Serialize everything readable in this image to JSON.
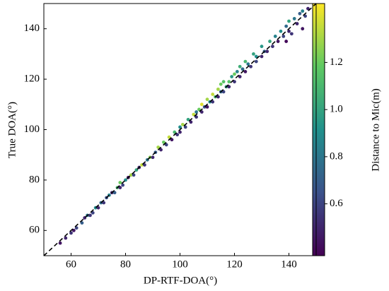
{
  "chart_data": {
    "type": "scatter",
    "xlabel": "DP-RTF-DOA(°)",
    "ylabel": "True DOA(°)",
    "colorbar_label": "Distance to Mic(m)",
    "xlim": [
      50,
      150
    ],
    "ylim": [
      50,
      150
    ],
    "xticks": [
      60,
      80,
      100,
      120,
      140
    ],
    "yticks": [
      60,
      80,
      100,
      120,
      140
    ],
    "clim": [
      0.38,
      1.45
    ],
    "cticks": [
      0.6,
      0.8,
      {
        "value": 1,
        "label": "1.0"
      },
      1.2
    ],
    "x": [
      56,
      58,
      60,
      62,
      61,
      64,
      65,
      66,
      67,
      68,
      69,
      70,
      71,
      72,
      73,
      74,
      75,
      76,
      77,
      78,
      78,
      79,
      80,
      81,
      82,
      83,
      84,
      85,
      86,
      87,
      88,
      89,
      90,
      91,
      92,
      93,
      94,
      95,
      96,
      97,
      98,
      99,
      100,
      100,
      101,
      102,
      103,
      104,
      105,
      106,
      106,
      107,
      108,
      108,
      109,
      110,
      110,
      111,
      112,
      112,
      113,
      114,
      114,
      115,
      115,
      116,
      117,
      118,
      118,
      119,
      120,
      120,
      121,
      122,
      122,
      123,
      124,
      124,
      125,
      126,
      127,
      128,
      128,
      130,
      130,
      131,
      132,
      133,
      134,
      135,
      136,
      137,
      138,
      139,
      140,
      140,
      141,
      142,
      143,
      144,
      145,
      146,
      147,
      139,
      145,
      116
    ],
    "y": [
      55,
      57,
      59,
      61,
      60,
      63,
      65,
      66,
      66,
      67,
      69,
      69,
      71,
      71,
      73,
      74,
      75,
      75,
      77,
      77,
      79,
      78,
      80,
      81,
      82,
      82,
      84,
      85,
      86,
      86,
      88,
      89,
      89,
      91,
      93,
      92,
      95,
      94,
      97,
      96,
      99,
      98,
      101,
      99,
      102,
      101,
      104,
      103,
      106,
      105,
      107,
      108,
      107,
      110,
      109,
      112,
      109,
      111,
      114,
      111,
      113,
      116,
      113,
      115,
      118,
      115,
      117,
      119,
      117,
      121,
      119,
      122,
      123,
      121,
      125,
      124,
      123,
      127,
      126,
      125,
      130,
      127,
      129,
      129,
      133,
      131,
      131,
      135,
      133,
      137,
      135,
      139,
      137,
      141,
      139,
      143,
      138,
      144,
      142,
      146,
      147,
      145,
      148,
      135,
      140,
      119
    ],
    "c": [
      0.45,
      0.5,
      0.55,
      0.6,
      0.45,
      0.7,
      0.5,
      0.8,
      0.55,
      0.6,
      0.9,
      0.5,
      0.75,
      0.55,
      0.65,
      0.85,
      0.5,
      0.7,
      1.1,
      0.5,
      1.2,
      0.6,
      0.9,
      0.45,
      1.3,
      0.6,
      1.0,
      0.5,
      1.35,
      0.55,
      0.8,
      1.25,
      0.5,
      0.7,
      1.3,
      0.5,
      1.2,
      0.6,
      1.35,
      0.45,
      1.1,
      0.55,
      0.9,
      0.5,
      1.3,
      0.6,
      1.0,
      0.5,
      1.35,
      0.55,
      0.8,
      1.2,
      0.5,
      1.4,
      0.65,
      1.3,
      0.45,
      0.9,
      1.35,
      0.55,
      1.1,
      1.3,
      0.5,
      0.75,
      1.2,
      0.6,
      1.0,
      1.15,
      0.5,
      0.95,
      0.55,
      1.2,
      0.85,
      0.5,
      1.05,
      0.75,
      0.45,
      1.1,
      0.8,
      0.55,
      1.0,
      0.6,
      0.9,
      0.5,
      0.95,
      0.7,
      0.5,
      1.0,
      0.55,
      0.85,
      0.45,
      0.9,
      0.6,
      0.75,
      0.5,
      1.0,
      0.55,
      0.8,
      0.5,
      0.7,
      0.85,
      0.6,
      0.5,
      0.4,
      0.45,
      1.15
    ]
  }
}
